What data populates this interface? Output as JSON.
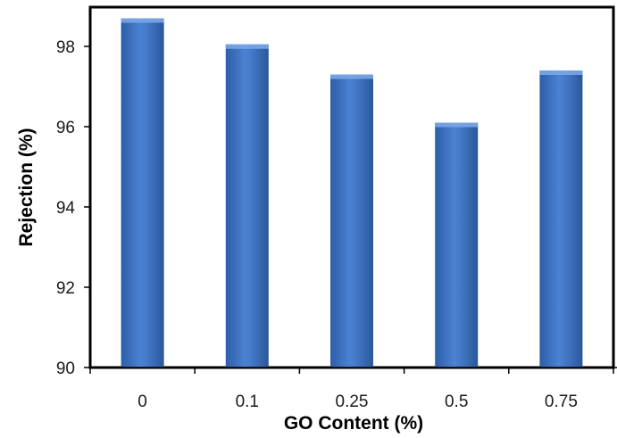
{
  "chart_data": {
    "type": "bar",
    "title": "",
    "xlabel": "GO Content (%)",
    "ylabel": "Rejection (%)",
    "categories": [
      "0",
      "0.1",
      "0.25",
      "0.5",
      "0.75"
    ],
    "values": [
      98.7,
      98.05,
      97.3,
      96.1,
      97.4
    ],
    "ylim": [
      90,
      99
    ],
    "yticks": [
      "90",
      "92",
      "94",
      "96",
      "98"
    ],
    "grid": false,
    "legend": "none",
    "bar_color": "#3f74c2",
    "bar_highlight_color": "#7aa6e4"
  }
}
